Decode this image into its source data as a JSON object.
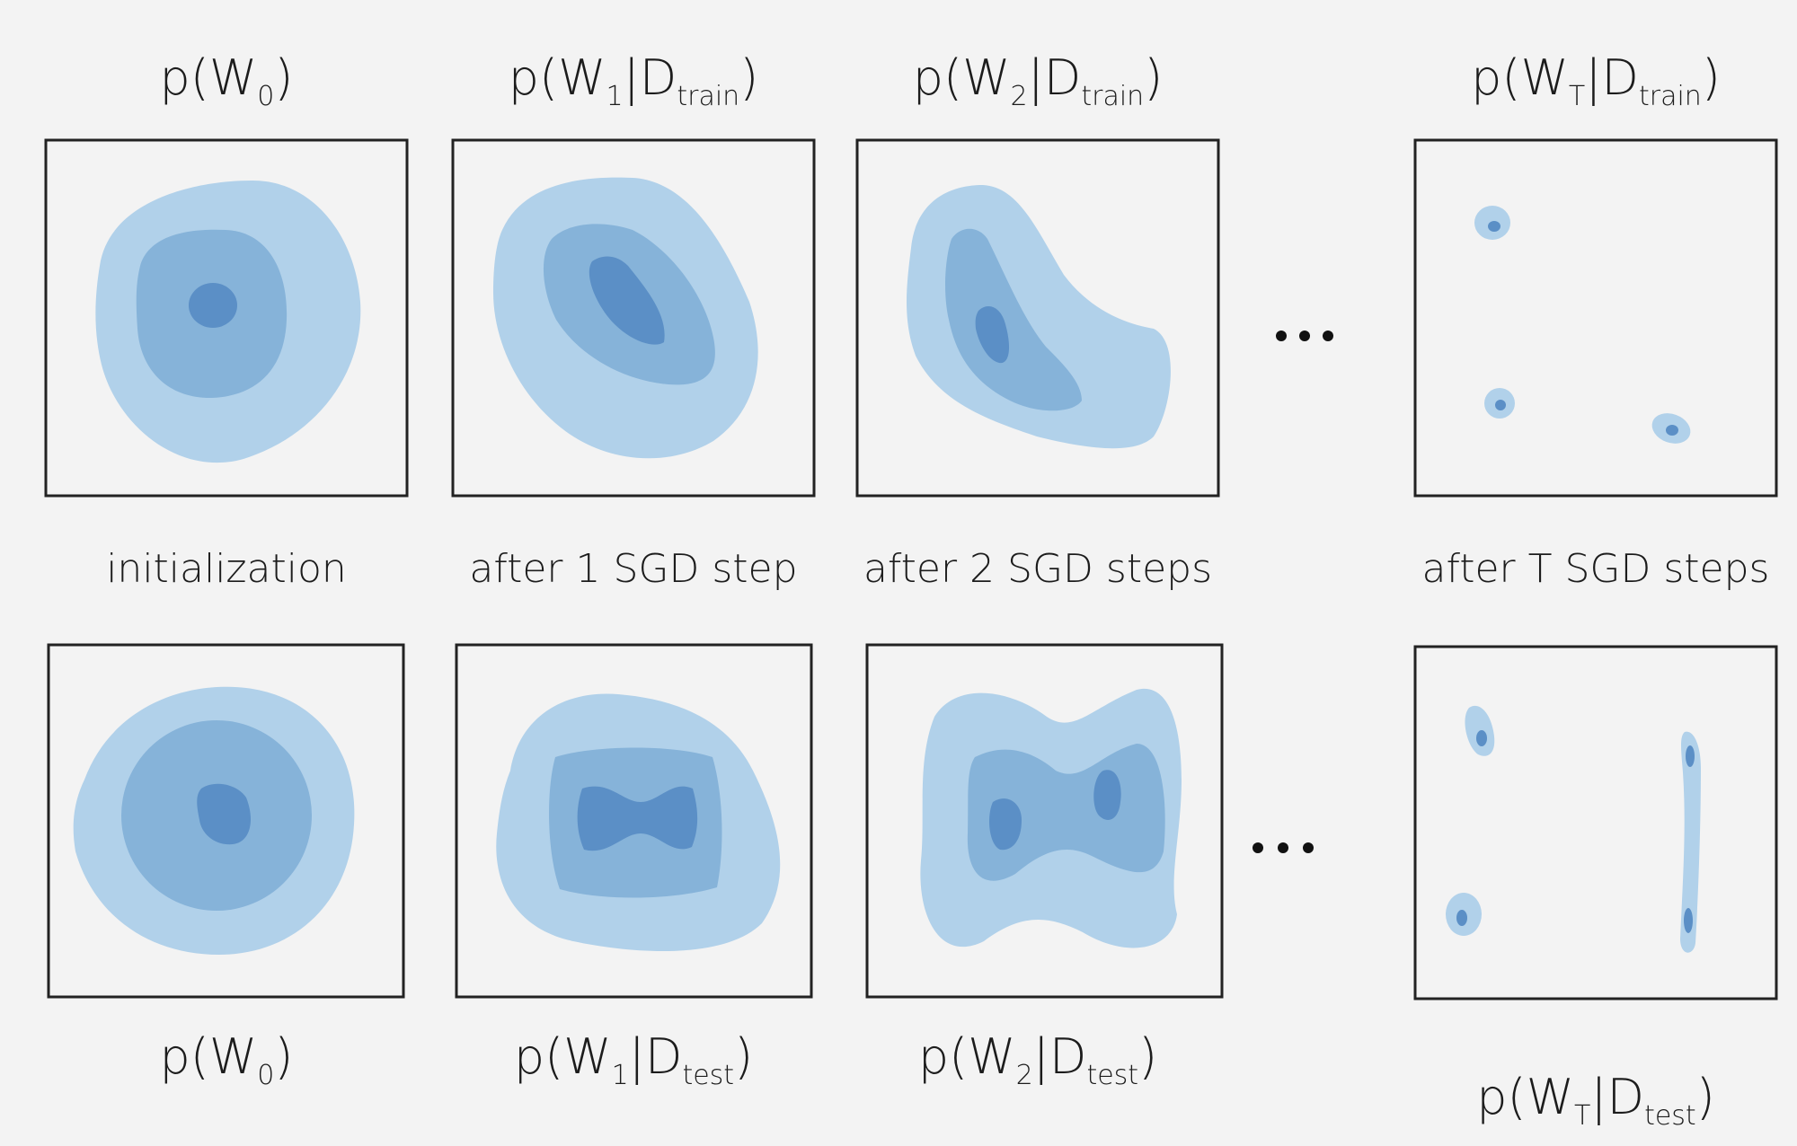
{
  "top_labels": [
    [
      {
        "t": "p(W"
      },
      {
        "t": "0",
        "sub": true
      },
      {
        "t": ")"
      }
    ],
    [
      {
        "t": "p(W"
      },
      {
        "t": "1",
        "sub": true
      },
      {
        "t": "|D"
      },
      {
        "t": "train",
        "sub": true
      },
      {
        "t": ")"
      }
    ],
    [
      {
        "t": "p(W"
      },
      {
        "t": "2",
        "sub": true
      },
      {
        "t": "|D"
      },
      {
        "t": "train",
        "sub": true
      },
      {
        "t": ")"
      }
    ],
    [
      {
        "t": "p(W"
      },
      {
        "t": "T",
        "sub": true
      },
      {
        "t": "|D"
      },
      {
        "t": "train",
        "sub": true
      },
      {
        "t": ")"
      }
    ]
  ],
  "step_labels": [
    "initialization",
    "after 1 SGD step",
    "after 2 SGD steps",
    "after T SGD steps"
  ],
  "bottom_labels": [
    [
      {
        "t": "p(W"
      },
      {
        "t": "0",
        "sub": true
      },
      {
        "t": ")"
      }
    ],
    [
      {
        "t": "p(W"
      },
      {
        "t": "1",
        "sub": true
      },
      {
        "t": "|D"
      },
      {
        "t": "test",
        "sub": true
      },
      {
        "t": ")"
      }
    ],
    [
      {
        "t": "p(W"
      },
      {
        "t": "2",
        "sub": true
      },
      {
        "t": "|D"
      },
      {
        "t": "test",
        "sub": true
      },
      {
        "t": ")"
      }
    ],
    [
      {
        "t": "p(W"
      },
      {
        "t": "T",
        "sub": true
      },
      {
        "t": "|D"
      },
      {
        "t": "test",
        "sub": true
      },
      {
        "t": ")"
      }
    ]
  ]
}
